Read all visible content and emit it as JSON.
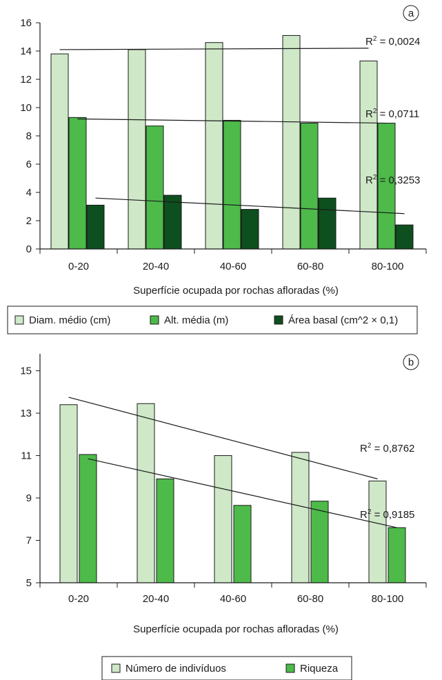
{
  "chart_data": [
    {
      "type": "bar",
      "panel_label": "a",
      "categories": [
        "0-20",
        "20-40",
        "40-60",
        "60-80",
        "80-100"
      ],
      "xlabel": "Superfície ocupada por rochas afloradas (%)",
      "ylabel": "",
      "ylim": [
        0,
        16
      ],
      "yticks": [
        0,
        2,
        4,
        6,
        8,
        10,
        12,
        14,
        16
      ],
      "grid": false,
      "legend_position": "bottom",
      "series": [
        {
          "name": "Diam. médio (cm)",
          "color": "#cfe8c8",
          "values": [
            13.8,
            14.1,
            14.6,
            15.1,
            13.3
          ]
        },
        {
          "name": "Alt. média (m)",
          "color": "#4dba4a",
          "values": [
            9.3,
            8.7,
            9.1,
            8.9,
            8.9
          ]
        },
        {
          "name": "Área basal (cm^2 × 0,1)",
          "color": "#0d4f1e",
          "values": [
            3.1,
            3.8,
            2.8,
            3.6,
            1.7
          ]
        }
      ],
      "trendlines": [
        {
          "series": "Diam. médio (cm)",
          "r2_base": "R",
          "r2_exp": "2",
          "r2_value": " = 0,0024",
          "start": 14.1,
          "end": 14.2
        },
        {
          "series": "Alt. média (m)",
          "r2_base": "R",
          "r2_exp": "2",
          "r2_value": " = 0,0711",
          "start": 9.2,
          "end": 8.9
        },
        {
          "series": "Área basal (cm^2 × 0,1)",
          "r2_base": "R",
          "r2_exp": "2",
          "r2_value": " = 0,3253",
          "start": 3.6,
          "end": 2.5
        }
      ]
    },
    {
      "type": "bar",
      "panel_label": "b",
      "categories": [
        "0-20",
        "20-40",
        "40-60",
        "60-80",
        "80-100"
      ],
      "xlabel": "Superfície ocupada por rochas afloradas (%)",
      "ylabel": "",
      "ylim": [
        5,
        15.8
      ],
      "yticks": [
        5,
        7,
        9,
        11,
        13,
        15
      ],
      "grid": false,
      "legend_position": "bottom",
      "series": [
        {
          "name": "Número de indivíduos",
          "color": "#cfe8c8",
          "values": [
            13.4,
            13.45,
            11.0,
            11.15,
            9.8
          ]
        },
        {
          "name": "Riqueza",
          "color": "#4dba4a",
          "values": [
            11.05,
            9.9,
            8.65,
            8.85,
            7.6
          ]
        }
      ],
      "trendlines": [
        {
          "series": "Número de indivíduos",
          "r2_base": "R",
          "r2_exp": "2",
          "r2_value": " = 0,8762",
          "start": 13.75,
          "end": 9.9
        },
        {
          "series": "Riqueza",
          "r2_base": "R",
          "r2_exp": "2",
          "r2_value": " = 0,9185",
          "start": 10.85,
          "end": 7.6
        }
      ]
    }
  ]
}
